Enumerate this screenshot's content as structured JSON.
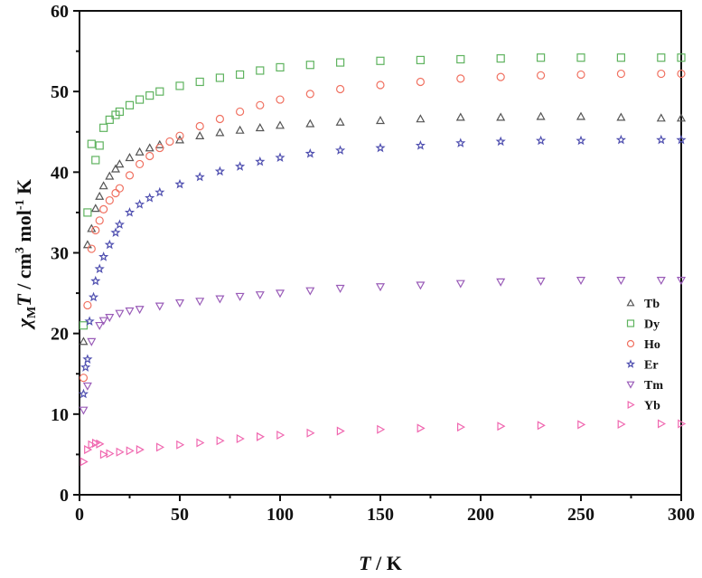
{
  "chart_data": {
    "type": "scatter",
    "xlabel": {
      "italic": "T",
      "rest": " / K"
    },
    "ylabel": {
      "chi": "χ",
      "sub": "M",
      "T": "T",
      "mid": " / cm",
      "sup3": "3",
      "mol": " mol",
      "supm1": "-1",
      "end": " K"
    },
    "xlim": [
      0,
      300
    ],
    "ylim": [
      0,
      60
    ],
    "xticks": [
      0,
      50,
      100,
      150,
      200,
      250,
      300
    ],
    "yticks": [
      0,
      10,
      20,
      30,
      40,
      50,
      60
    ],
    "grid": false,
    "legend_position": "right-middle",
    "series": [
      {
        "name": "Tb",
        "marker": "triangle-up",
        "color": "#555555",
        "points": [
          [
            2,
            19
          ],
          [
            4,
            31
          ],
          [
            6,
            33
          ],
          [
            8,
            35.5
          ],
          [
            10,
            37
          ],
          [
            12,
            38.3
          ],
          [
            15,
            39.5
          ],
          [
            18,
            40.4
          ],
          [
            20,
            41
          ],
          [
            25,
            41.8
          ],
          [
            30,
            42.5
          ],
          [
            35,
            43
          ],
          [
            40,
            43.4
          ],
          [
            50,
            44
          ],
          [
            60,
            44.5
          ],
          [
            70,
            44.9
          ],
          [
            80,
            45.2
          ],
          [
            90,
            45.5
          ],
          [
            100,
            45.8
          ],
          [
            115,
            46.0
          ],
          [
            130,
            46.2
          ],
          [
            150,
            46.4
          ],
          [
            170,
            46.6
          ],
          [
            190,
            46.8
          ],
          [
            210,
            46.8
          ],
          [
            230,
            46.9
          ],
          [
            250,
            46.9
          ],
          [
            270,
            46.8
          ],
          [
            290,
            46.7
          ],
          [
            300,
            46.7
          ]
        ]
      },
      {
        "name": "Dy",
        "marker": "square",
        "color": "#5fb35f",
        "points": [
          [
            2,
            21
          ],
          [
            4,
            35
          ],
          [
            6,
            43.5
          ],
          [
            8,
            41.5
          ],
          [
            10,
            43.3
          ],
          [
            12,
            45.5
          ],
          [
            15,
            46.5
          ],
          [
            18,
            47.1
          ],
          [
            20,
            47.5
          ],
          [
            25,
            48.3
          ],
          [
            30,
            49
          ],
          [
            35,
            49.5
          ],
          [
            40,
            50
          ],
          [
            50,
            50.7
          ],
          [
            60,
            51.2
          ],
          [
            70,
            51.7
          ],
          [
            80,
            52.1
          ],
          [
            90,
            52.6
          ],
          [
            100,
            53
          ],
          [
            115,
            53.3
          ],
          [
            130,
            53.6
          ],
          [
            150,
            53.8
          ],
          [
            170,
            53.9
          ],
          [
            190,
            54
          ],
          [
            210,
            54.1
          ],
          [
            230,
            54.2
          ],
          [
            250,
            54.2
          ],
          [
            270,
            54.2
          ],
          [
            290,
            54.2
          ],
          [
            300,
            54.2
          ]
        ]
      },
      {
        "name": "Ho",
        "marker": "circle",
        "color": "#f07060",
        "points": [
          [
            2,
            14.5
          ],
          [
            4,
            23.5
          ],
          [
            6,
            30.5
          ],
          [
            8,
            32.8
          ],
          [
            10,
            34
          ],
          [
            12,
            35.4
          ],
          [
            15,
            36.5
          ],
          [
            18,
            37.4
          ],
          [
            20,
            38
          ],
          [
            25,
            39.6
          ],
          [
            30,
            41
          ],
          [
            35,
            42
          ],
          [
            40,
            43
          ],
          [
            45,
            43.8
          ],
          [
            50,
            44.5
          ],
          [
            60,
            45.7
          ],
          [
            70,
            46.6
          ],
          [
            80,
            47.5
          ],
          [
            90,
            48.3
          ],
          [
            100,
            49
          ],
          [
            115,
            49.7
          ],
          [
            130,
            50.3
          ],
          [
            150,
            50.8
          ],
          [
            170,
            51.2
          ],
          [
            190,
            51.6
          ],
          [
            210,
            51.8
          ],
          [
            230,
            52
          ],
          [
            250,
            52.1
          ],
          [
            270,
            52.2
          ],
          [
            290,
            52.2
          ],
          [
            300,
            52.2
          ]
        ]
      },
      {
        "name": "Er",
        "marker": "star",
        "color": "#5050b0",
        "points": [
          [
            2,
            12.5
          ],
          [
            3,
            15.8
          ],
          [
            4,
            16.8
          ],
          [
            5,
            21.5
          ],
          [
            7,
            24.5
          ],
          [
            8,
            26.5
          ],
          [
            10,
            28
          ],
          [
            12,
            29.5
          ],
          [
            15,
            31
          ],
          [
            18,
            32.5
          ],
          [
            20,
            33.5
          ],
          [
            25,
            35
          ],
          [
            30,
            36
          ],
          [
            35,
            36.8
          ],
          [
            40,
            37.5
          ],
          [
            50,
            38.5
          ],
          [
            60,
            39.4
          ],
          [
            70,
            40.1
          ],
          [
            80,
            40.7
          ],
          [
            90,
            41.3
          ],
          [
            100,
            41.8
          ],
          [
            115,
            42.3
          ],
          [
            130,
            42.7
          ],
          [
            150,
            43
          ],
          [
            170,
            43.3
          ],
          [
            190,
            43.6
          ],
          [
            210,
            43.8
          ],
          [
            230,
            43.9
          ],
          [
            250,
            43.9
          ],
          [
            270,
            44
          ],
          [
            290,
            44
          ],
          [
            300,
            44
          ]
        ]
      },
      {
        "name": "Tm",
        "marker": "triangle-down",
        "color": "#9a5cb8",
        "points": [
          [
            2,
            10.5
          ],
          [
            4,
            13.5
          ],
          [
            6,
            19
          ],
          [
            10,
            21
          ],
          [
            12,
            21.6
          ],
          [
            15,
            22
          ],
          [
            20,
            22.5
          ],
          [
            25,
            22.8
          ],
          [
            30,
            23
          ],
          [
            40,
            23.4
          ],
          [
            50,
            23.8
          ],
          [
            60,
            24
          ],
          [
            70,
            24.3
          ],
          [
            80,
            24.6
          ],
          [
            90,
            24.8
          ],
          [
            100,
            25
          ],
          [
            115,
            25.3
          ],
          [
            130,
            25.6
          ],
          [
            150,
            25.8
          ],
          [
            170,
            26
          ],
          [
            190,
            26.2
          ],
          [
            210,
            26.4
          ],
          [
            230,
            26.5
          ],
          [
            250,
            26.6
          ],
          [
            270,
            26.6
          ],
          [
            290,
            26.6
          ],
          [
            300,
            26.6
          ]
        ]
      },
      {
        "name": "Yb",
        "marker": "triangle-right",
        "color": "#f068b0",
        "points": [
          [
            2,
            4.1
          ],
          [
            4,
            5.6
          ],
          [
            6,
            6.2
          ],
          [
            8,
            6.4
          ],
          [
            10,
            6.3
          ],
          [
            12,
            5
          ],
          [
            15,
            5.1
          ],
          [
            20,
            5.3
          ],
          [
            25,
            5.45
          ],
          [
            30,
            5.6
          ],
          [
            40,
            5.9
          ],
          [
            50,
            6.2
          ],
          [
            60,
            6.45
          ],
          [
            70,
            6.7
          ],
          [
            80,
            6.95
          ],
          [
            90,
            7.2
          ],
          [
            100,
            7.4
          ],
          [
            115,
            7.65
          ],
          [
            130,
            7.9
          ],
          [
            150,
            8.1
          ],
          [
            170,
            8.25
          ],
          [
            190,
            8.4
          ],
          [
            210,
            8.5
          ],
          [
            230,
            8.6
          ],
          [
            250,
            8.7
          ],
          [
            270,
            8.75
          ],
          [
            290,
            8.8
          ],
          [
            300,
            8.8
          ]
        ]
      }
    ]
  }
}
